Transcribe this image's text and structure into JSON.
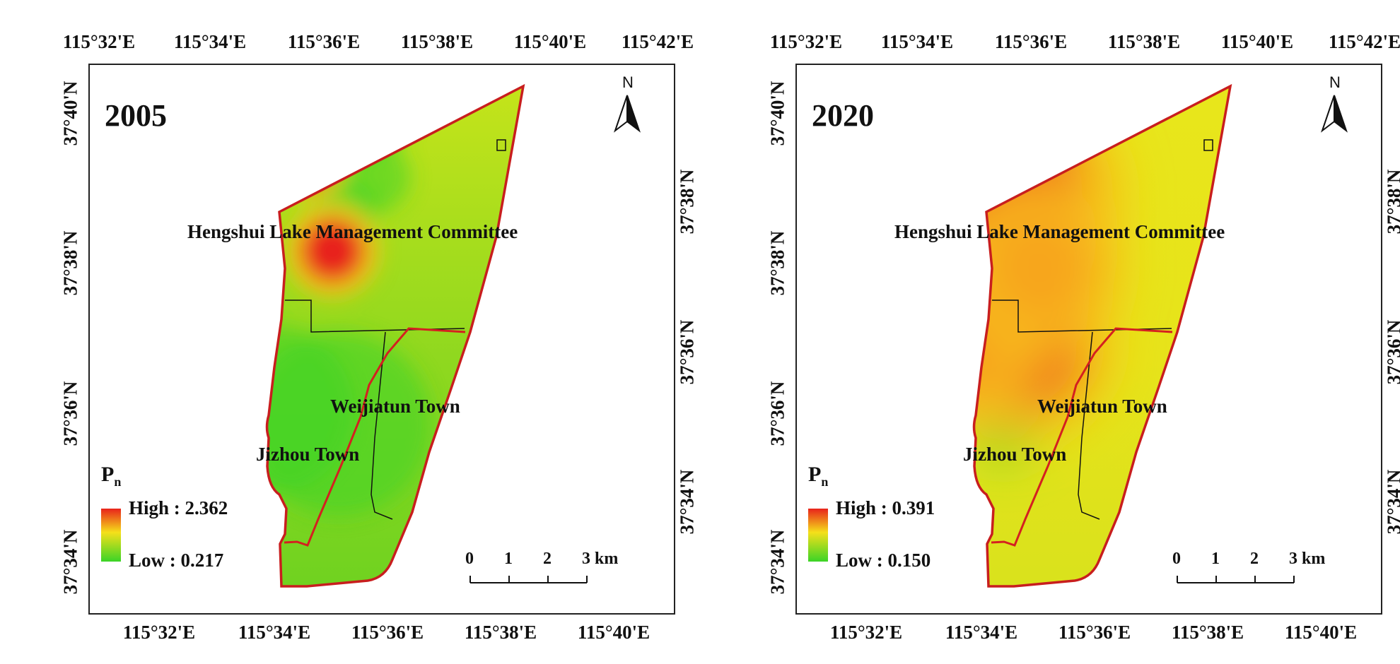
{
  "panels": [
    {
      "year": "2005",
      "legend_title": "P",
      "legend_sub": "n",
      "high_label": "High : 2.362",
      "low_label": "Low : 0.217",
      "towns": [
        "Hengshui Lake Management Committee",
        "Weijiatun Town",
        "Jizhou Town"
      ],
      "top_ticks": [
        "115°32'E",
        "115°34'E",
        "115°36'E",
        "115°38'E",
        "115°40'E",
        "115°42'E"
      ],
      "bottom_ticks": [
        "115°32'E",
        "115°34'E",
        "115°36'E",
        "115°38'E",
        "115°40'E"
      ],
      "left_ticks": [
        "37°40'N",
        "37°38'N",
        "37°36'N",
        "37°34'N"
      ],
      "right_ticks": [
        "37°38'N",
        "37°36'N",
        "37°34'N"
      ],
      "scale_labels": [
        "0",
        "1",
        "2",
        "3 km"
      ],
      "north": "N",
      "hotspots": [
        {
          "cx": 438,
          "cy": 228,
          "r": 34,
          "color": "#e8231b"
        },
        {
          "cx": 470,
          "cy": 355,
          "r": 44,
          "color": "#e8231b"
        }
      ],
      "coolspots": [
        {
          "cx": 520,
          "cy": 160,
          "r": 60
        },
        {
          "cx": 480,
          "cy": 210,
          "r": 40
        },
        {
          "cx": 490,
          "cy": 300,
          "r": 45
        },
        {
          "cx": 530,
          "cy": 250,
          "r": 50
        },
        {
          "cx": 480,
          "cy": 600,
          "r": 130
        },
        {
          "cx": 380,
          "cy": 580,
          "r": 120
        }
      ],
      "base_color": "#8fd81f",
      "upper_color": "#c6e41a"
    },
    {
      "year": "2020",
      "legend_title": "P",
      "legend_sub": "n",
      "high_label": "High : 0.391",
      "low_label": "Low : 0.150",
      "towns": [
        "Hengshui Lake Management Committee",
        "Weijiatun Town",
        "Jizhou Town"
      ],
      "top_ticks": [
        "115°32'E",
        "115°34'E",
        "115°36'E",
        "115°38'E",
        "115°40'E",
        "115°42'E"
      ],
      "bottom_ticks": [
        "115°32'E",
        "115°34'E",
        "115°36'E",
        "115°38'E",
        "115°40'E"
      ],
      "left_ticks": [
        "37°40'N",
        "37°38'N",
        "37°36'N",
        "37°34'N"
      ],
      "right_ticks": [
        "37°38'N",
        "37°36'N",
        "37°34'N"
      ],
      "scale_labels": [
        "0",
        "1",
        "2",
        "3 km"
      ],
      "north": "N",
      "hotspots": [
        {
          "cx": 425,
          "cy": 275,
          "r": 110,
          "color": "#f0701a"
        },
        {
          "cx": 440,
          "cy": 490,
          "r": 90,
          "color": "#ee3c1a"
        },
        {
          "cx": 340,
          "cy": 470,
          "r": 95,
          "color": "#f7a01d"
        },
        {
          "cx": 470,
          "cy": 380,
          "r": 80,
          "color": "#f7a51d"
        }
      ],
      "coolspots": [
        {
          "cx": 415,
          "cy": 185,
          "r": 55
        },
        {
          "cx": 320,
          "cy": 320,
          "r": 60
        },
        {
          "cx": 310,
          "cy": 560,
          "r": 50
        },
        {
          "cx": 420,
          "cy": 600,
          "r": 55
        }
      ],
      "base_color": "#e7e31a",
      "upper_color": "#e8e61b"
    }
  ]
}
